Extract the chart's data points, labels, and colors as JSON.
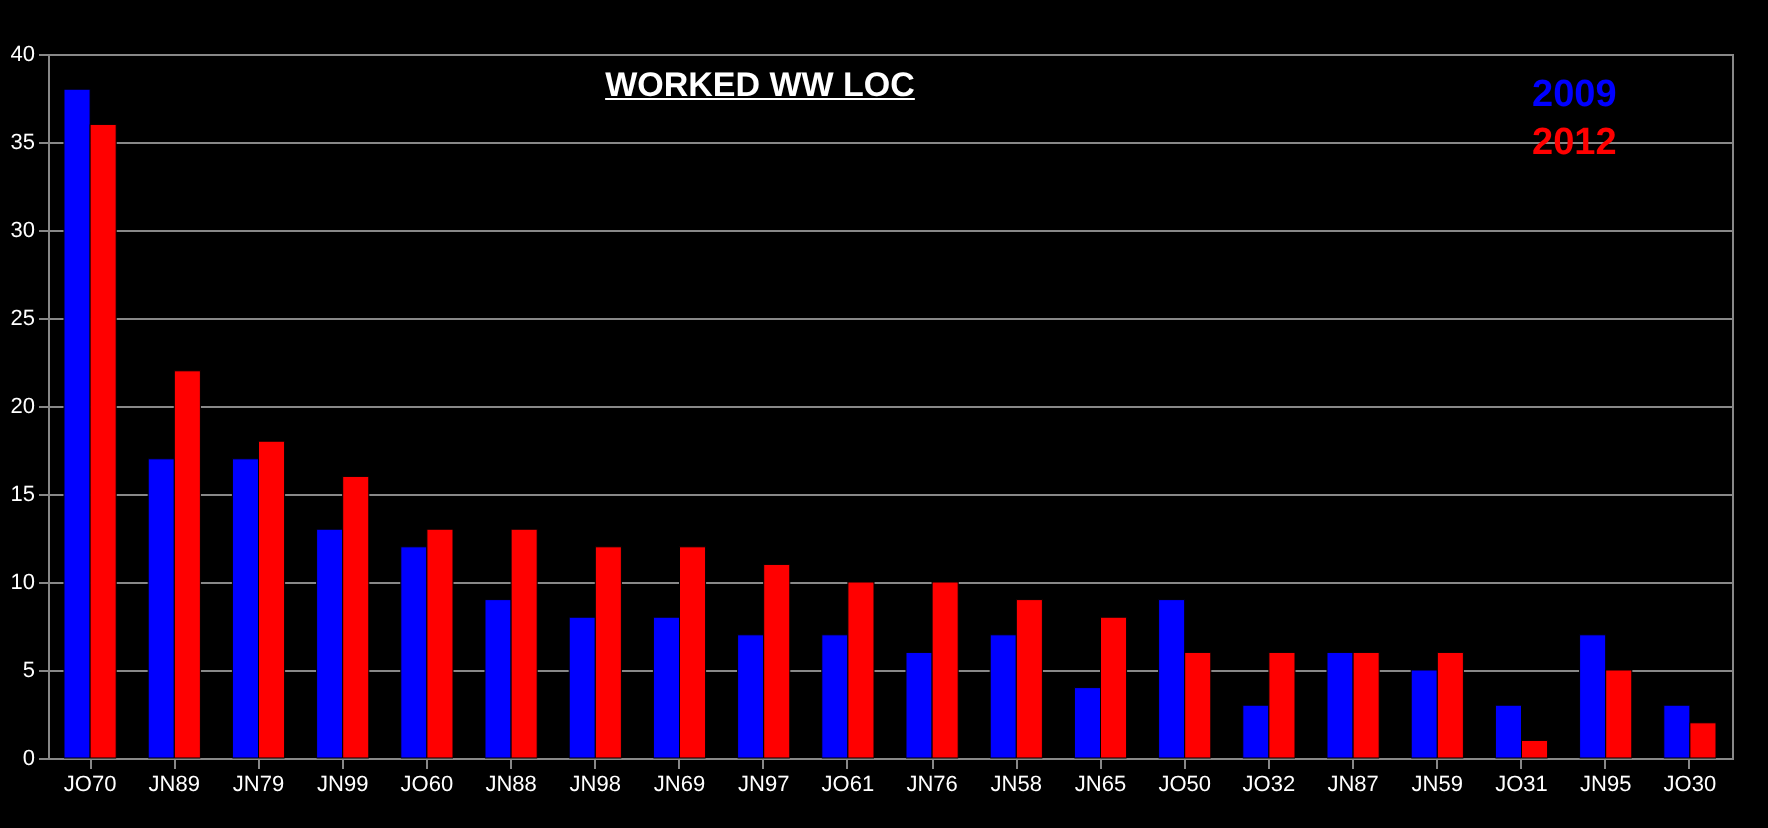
{
  "chart_data": {
    "type": "bar",
    "title": "WORKED WW LOC",
    "categories": [
      "JO70",
      "JN89",
      "JN79",
      "JN99",
      "JO60",
      "JN88",
      "JN98",
      "JN69",
      "JN97",
      "JO61",
      "JN76",
      "JN58",
      "JN65",
      "JO50",
      "JO32",
      "JN87",
      "JN59",
      "JO31",
      "JN95",
      "JO30"
    ],
    "series": [
      {
        "name": "2009",
        "color": "#0000ff",
        "values": [
          38,
          17,
          17,
          13,
          12,
          9,
          8,
          8,
          7,
          7,
          6,
          7,
          4,
          9,
          3,
          6,
          5,
          3,
          7,
          3
        ]
      },
      {
        "name": "2012",
        "color": "#ff0000",
        "values": [
          36,
          22,
          18,
          16,
          13,
          13,
          12,
          12,
          11,
          10,
          10,
          9,
          8,
          6,
          6,
          6,
          6,
          1,
          5,
          2
        ]
      }
    ],
    "ylim": [
      0,
      40
    ],
    "yticks": [
      0,
      5,
      10,
      15,
      20,
      25,
      30,
      35,
      40
    ],
    "grid": "y",
    "legend": "top right"
  }
}
